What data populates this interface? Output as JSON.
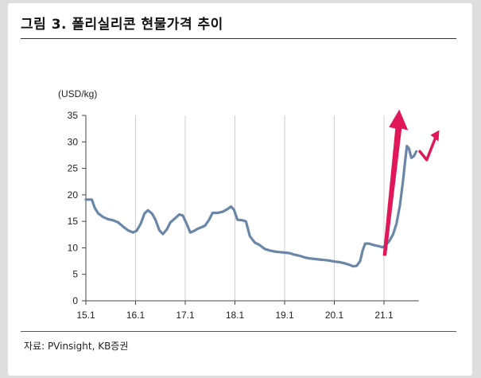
{
  "title": "그림 3. 폴리실리콘 현물가격 추이",
  "source": "자료: PVinsight, KB증권",
  "chart_data": {
    "type": "line",
    "ylabel": "(USD/kg)",
    "ylim": [
      0,
      35
    ],
    "yticks": [
      0,
      5,
      10,
      15,
      20,
      25,
      30,
      35
    ],
    "xticks": [
      {
        "label": "15.1",
        "t": 0
      },
      {
        "label": "16.1",
        "t": 1
      },
      {
        "label": "17.1",
        "t": 2
      },
      {
        "label": "18.1",
        "t": 3
      },
      {
        "label": "19.1",
        "t": 4
      },
      {
        "label": "20.1",
        "t": 5
      },
      {
        "label": "21.1",
        "t": 6
      }
    ],
    "xlim": [
      0,
      6.7
    ],
    "grid": "vertical",
    "line_color": "#6a87a8",
    "annotation_color": "#e0185a",
    "series": [
      {
        "points": [
          [
            0.0,
            19.1
          ],
          [
            0.12,
            19.1
          ],
          [
            0.18,
            17.5
          ],
          [
            0.25,
            16.5
          ],
          [
            0.35,
            15.8
          ],
          [
            0.45,
            15.4
          ],
          [
            0.55,
            15.2
          ],
          [
            0.65,
            14.8
          ],
          [
            0.75,
            14.0
          ],
          [
            0.85,
            13.3
          ],
          [
            0.95,
            12.9
          ],
          [
            1.02,
            13.2
          ],
          [
            1.1,
            14.5
          ],
          [
            1.18,
            16.5
          ],
          [
            1.25,
            17.1
          ],
          [
            1.33,
            16.5
          ],
          [
            1.4,
            15.3
          ],
          [
            1.48,
            13.3
          ],
          [
            1.55,
            12.6
          ],
          [
            1.63,
            13.5
          ],
          [
            1.7,
            14.8
          ],
          [
            1.8,
            15.6
          ],
          [
            1.88,
            16.3
          ],
          [
            1.95,
            16.1
          ],
          [
            2.03,
            14.5
          ],
          [
            2.1,
            12.9
          ],
          [
            2.18,
            13.2
          ],
          [
            2.25,
            13.6
          ],
          [
            2.33,
            13.9
          ],
          [
            2.4,
            14.2
          ],
          [
            2.48,
            15.3
          ],
          [
            2.55,
            16.6
          ],
          [
            2.65,
            16.6
          ],
          [
            2.75,
            16.8
          ],
          [
            2.85,
            17.3
          ],
          [
            2.92,
            17.8
          ],
          [
            2.98,
            17.2
          ],
          [
            3.05,
            15.3
          ],
          [
            3.15,
            15.2
          ],
          [
            3.22,
            15.0
          ],
          [
            3.3,
            12.2
          ],
          [
            3.4,
            11.0
          ],
          [
            3.5,
            10.5
          ],
          [
            3.6,
            9.8
          ],
          [
            3.7,
            9.5
          ],
          [
            3.8,
            9.3
          ],
          [
            3.9,
            9.2
          ],
          [
            4.0,
            9.1
          ],
          [
            4.1,
            9.0
          ],
          [
            4.2,
            8.7
          ],
          [
            4.3,
            8.5
          ],
          [
            4.4,
            8.2
          ],
          [
            4.5,
            8.0
          ],
          [
            4.6,
            7.9
          ],
          [
            4.7,
            7.8
          ],
          [
            4.8,
            7.7
          ],
          [
            4.9,
            7.6
          ],
          [
            5.0,
            7.4
          ],
          [
            5.1,
            7.3
          ],
          [
            5.2,
            7.1
          ],
          [
            5.3,
            6.8
          ],
          [
            5.38,
            6.5
          ],
          [
            5.45,
            6.6
          ],
          [
            5.52,
            7.5
          ],
          [
            5.57,
            9.5
          ],
          [
            5.62,
            10.8
          ],
          [
            5.7,
            10.8
          ],
          [
            5.8,
            10.5
          ],
          [
            5.9,
            10.3
          ],
          [
            5.97,
            10.1
          ],
          [
            6.03,
            10.5
          ],
          [
            6.1,
            11.2
          ],
          [
            6.18,
            12.5
          ],
          [
            6.25,
            14.5
          ],
          [
            6.32,
            18.0
          ],
          [
            6.38,
            22.5
          ],
          [
            6.42,
            26.0
          ],
          [
            6.46,
            29.2
          ],
          [
            6.5,
            28.8
          ],
          [
            6.55,
            27.0
          ],
          [
            6.6,
            27.3
          ],
          [
            6.65,
            28.2
          ]
        ]
      }
    ]
  }
}
